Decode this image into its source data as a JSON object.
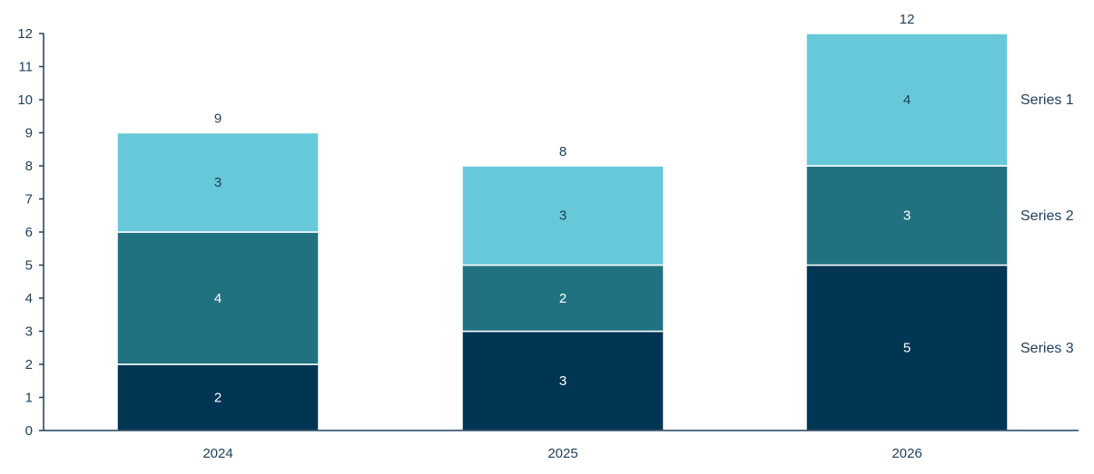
{
  "chart_data": {
    "type": "bar",
    "stacked": true,
    "categories": [
      "2024",
      "2025",
      "2026"
    ],
    "series": [
      {
        "name": "Series 3",
        "values": [
          2,
          3,
          5
        ],
        "color": "#003554",
        "label_color": "#ffffff"
      },
      {
        "name": "Series 2",
        "values": [
          4,
          2,
          3
        ],
        "color": "#217280",
        "label_color": "#ffffff"
      },
      {
        "name": "Series 1",
        "values": [
          3,
          3,
          4
        ],
        "color": "#67c8d9",
        "label_color": "#1f3d5a"
      }
    ],
    "totals": [
      9,
      8,
      12
    ],
    "y_ticks": [
      "0",
      "1",
      "2",
      "3",
      "4",
      "5",
      "6",
      "7",
      "8",
      "9",
      "10",
      "11",
      "12"
    ],
    "ylim": [
      0,
      12
    ],
    "title": "",
    "xlabel": "",
    "ylabel": "",
    "grid": false,
    "legend_placement": "right",
    "axis_color": "#1f3d5a"
  }
}
